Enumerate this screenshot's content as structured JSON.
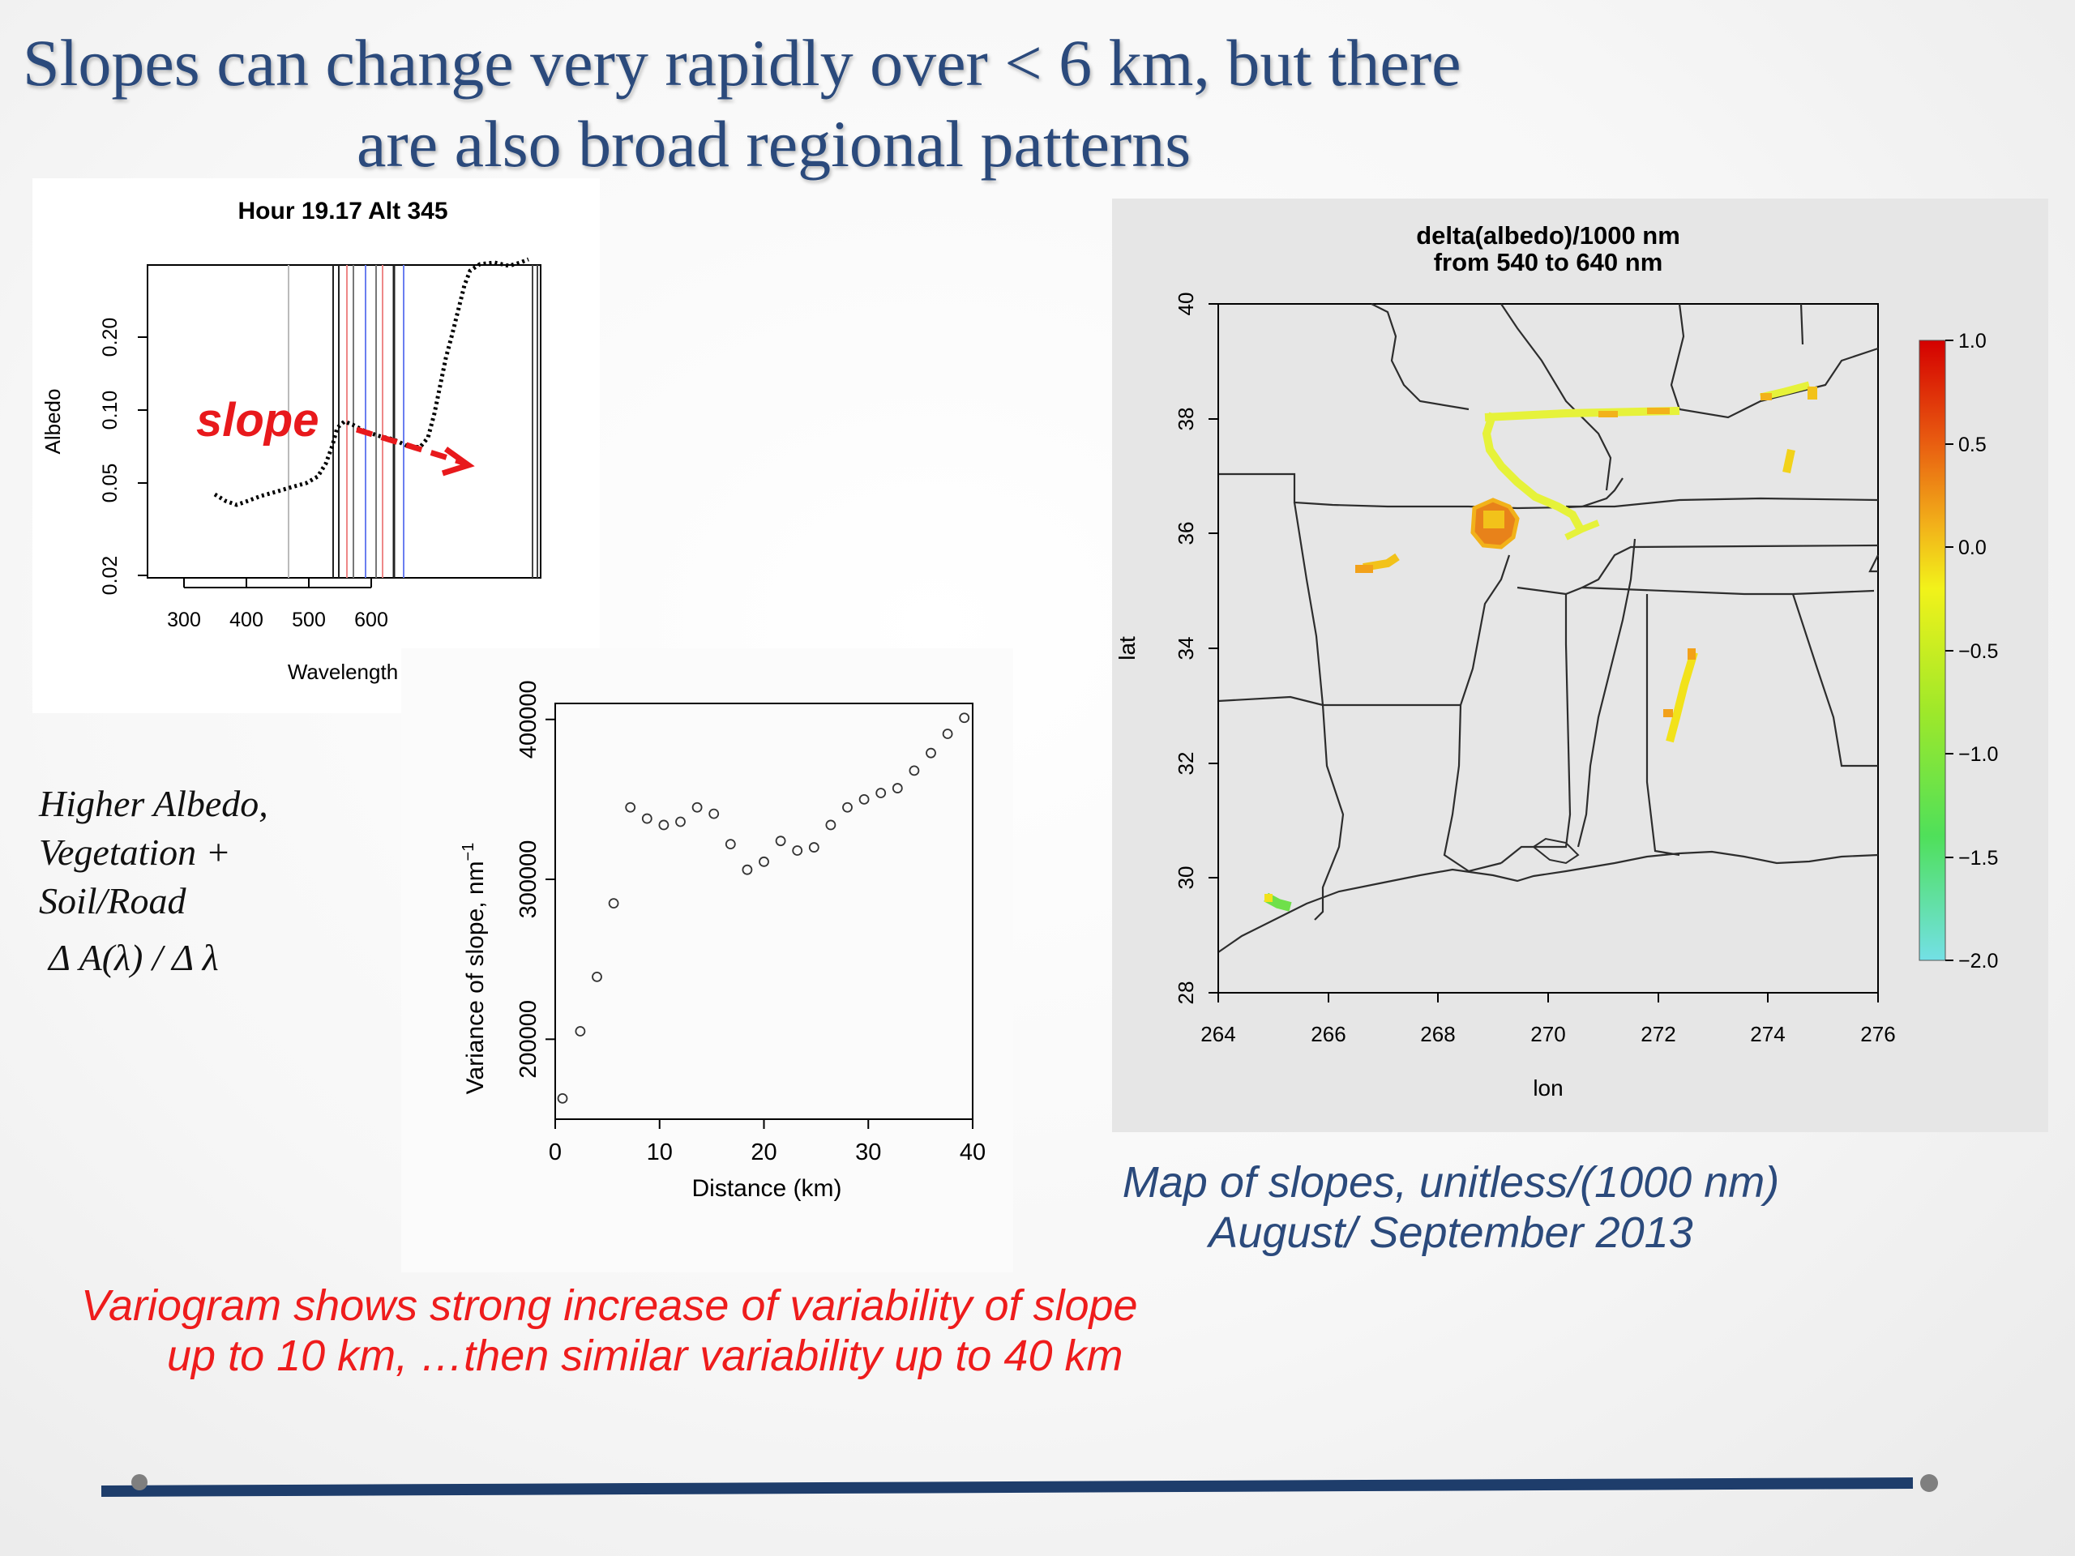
{
  "slide": {
    "title_line_1": "Slopes can change very rapidly over < 6 km, but there",
    "title_line_2": "are also broad regional patterns"
  },
  "annotation": {
    "lines": [
      "Higher Albedo,",
      "Vegetation +",
      "Soil/Road"
    ],
    "formula": "Δ A(λ) / Δ λ"
  },
  "spectrum_plot": {
    "title": "Hour 19.17 Alt 345",
    "xlabel": "Wavelength",
    "ylabel": "Albedo",
    "x_ticks": [
      "300",
      "400",
      "500",
      "600"
    ],
    "y_ticks": [
      "0.02",
      "0.05",
      "0.10",
      "0.20"
    ],
    "overlay_label": "slope",
    "overlay_color": "#e8191c"
  },
  "map_plot": {
    "title_line_1": "delta(albedo)/1000 nm",
    "title_line_2": "from 540 to 640 nm",
    "xlabel": "lon",
    "ylabel": "lat",
    "x_ticks": [
      "264",
      "266",
      "268",
      "270",
      "272",
      "274",
      "276"
    ],
    "y_ticks": [
      "28",
      "30",
      "32",
      "34",
      "36",
      "38",
      "40"
    ],
    "colorbar_ticks": [
      "1.0",
      "0.5",
      "0.0",
      "−0.5",
      "−1.0",
      "−1.5",
      "−2.0"
    ],
    "colorbar_colors": [
      "#d40000",
      "#e85a10",
      "#f2b21a",
      "#f2f21a",
      "#9ee82a",
      "#4fe05a",
      "#73e0e6"
    ],
    "background_color": "#e6e6e6"
  },
  "map_caption": {
    "line_1": "Map of slopes, unitless/(1000 nm)",
    "line_2": "August/ September 2013"
  },
  "variogram_caption": {
    "line_1": "Variogram shows strong increase of variability of slope",
    "line_2": "up to 10 km, …then similar variability up to 40 km"
  },
  "chart_data": [
    {
      "type": "scatter",
      "title": "",
      "xlabel": "Distance (km)",
      "ylabel": "Variance of slope, nm",
      "ylabel_superscript": "−1",
      "xlim": [
        0,
        40
      ],
      "ylim": [
        150000,
        410000
      ],
      "x_ticks": [
        "0",
        "10",
        "20",
        "30",
        "40"
      ],
      "y_ticks": [
        "200000",
        "300000",
        "400000"
      ],
      "grid": false,
      "series": [
        {
          "x": [
            0.7,
            2.4,
            4.0,
            5.6,
            7.2,
            8.8,
            10.4,
            12.0,
            13.6,
            15.2,
            16.8,
            18.4,
            20.0,
            21.6,
            23.2,
            24.8,
            26.4,
            28.0,
            29.6,
            31.2,
            32.8,
            34.4,
            36.0,
            37.6,
            39.2
          ],
          "values": [
            163000,
            205000,
            239000,
            285000,
            345000,
            338000,
            334000,
            336000,
            345000,
            341000,
            322000,
            306000,
            311000,
            324000,
            318000,
            320000,
            334000,
            345000,
            350000,
            354000,
            357000,
            368000,
            379000,
            391000,
            401000
          ]
        }
      ]
    }
  ]
}
